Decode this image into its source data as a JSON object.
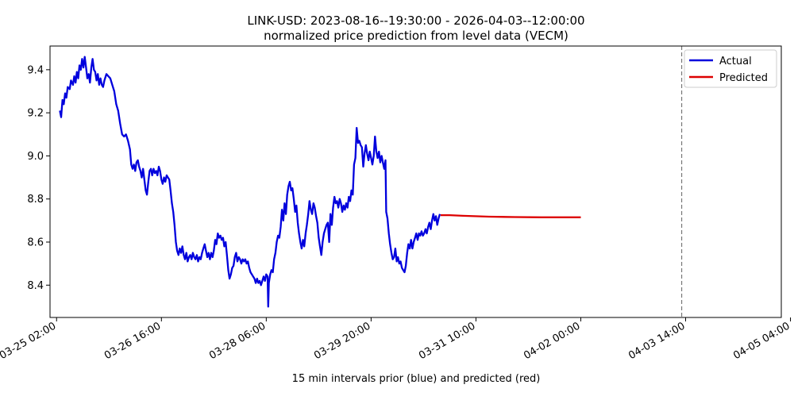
{
  "chart_data": {
    "type": "line",
    "title": "LINK-USD: 2023-08-16--19:30:00 - 2026-04-03--12:00:00",
    "subtitle": "normalized price prediction from level data (VECM)",
    "xlabel": "15 min intervals prior (blue) and predicted (red)",
    "ylabel": "",
    "xlim": [
      -10,
      1106
    ],
    "ylim": [
      8.25,
      9.51
    ],
    "x_tick_values": [
      0,
      160,
      320,
      480,
      640,
      800,
      960,
      1120
    ],
    "x_tick_labels": [
      "03-25 02:00",
      "03-26 16:00",
      "03-28 06:00",
      "03-29 20:00",
      "03-31 10:00",
      "04-02 00:00",
      "04-03 14:00",
      "04-05 04:00"
    ],
    "y_ticks": [
      8.4,
      8.6,
      8.8,
      9.0,
      9.2,
      9.4
    ],
    "y_tick_labels": [
      "8.4",
      "8.6",
      "8.8",
      "9.0",
      "9.2",
      "9.4"
    ],
    "forecast_start": 954,
    "legend_position": "top-right",
    "grid": false,
    "series": [
      {
        "name": "Actual",
        "color": "#0000dd",
        "points": [
          [
            5,
            9.21
          ],
          [
            7,
            9.18
          ],
          [
            9,
            9.26
          ],
          [
            11,
            9.24
          ],
          [
            13,
            9.29
          ],
          [
            15,
            9.27
          ],
          [
            17,
            9.32
          ],
          [
            20,
            9.31
          ],
          [
            22,
            9.35
          ],
          [
            25,
            9.33
          ],
          [
            27,
            9.37
          ],
          [
            29,
            9.34
          ],
          [
            31,
            9.39
          ],
          [
            33,
            9.36
          ],
          [
            35,
            9.42
          ],
          [
            37,
            9.4
          ],
          [
            39,
            9.45
          ],
          [
            41,
            9.41
          ],
          [
            43,
            9.46
          ],
          [
            45,
            9.41
          ],
          [
            47,
            9.36
          ],
          [
            49,
            9.38
          ],
          [
            51,
            9.34
          ],
          [
            53,
            9.41
          ],
          [
            55,
            9.45
          ],
          [
            57,
            9.4
          ],
          [
            59,
            9.39
          ],
          [
            61,
            9.35
          ],
          [
            63,
            9.38
          ],
          [
            65,
            9.33
          ],
          [
            67,
            9.36
          ],
          [
            69,
            9.33
          ],
          [
            71,
            9.32
          ],
          [
            73,
            9.35
          ],
          [
            76,
            9.38
          ],
          [
            79,
            9.37
          ],
          [
            82,
            9.36
          ],
          [
            85,
            9.33
          ],
          [
            88,
            9.3
          ],
          [
            91,
            9.24
          ],
          [
            94,
            9.21
          ],
          [
            97,
            9.15
          ],
          [
            100,
            9.1
          ],
          [
            103,
            9.09
          ],
          [
            106,
            9.1
          ],
          [
            109,
            9.07
          ],
          [
            112,
            9.03
          ],
          [
            114,
            8.96
          ],
          [
            116,
            8.94
          ],
          [
            118,
            8.96
          ],
          [
            120,
            8.93
          ],
          [
            122,
            8.97
          ],
          [
            124,
            8.98
          ],
          [
            126,
            8.95
          ],
          [
            128,
            8.93
          ],
          [
            130,
            8.9
          ],
          [
            132,
            8.94
          ],
          [
            134,
            8.89
          ],
          [
            136,
            8.84
          ],
          [
            138,
            8.82
          ],
          [
            140,
            8.88
          ],
          [
            142,
            8.93
          ],
          [
            144,
            8.94
          ],
          [
            146,
            8.91
          ],
          [
            148,
            8.94
          ],
          [
            150,
            8.92
          ],
          [
            152,
            8.93
          ],
          [
            154,
            8.91
          ],
          [
            156,
            8.95
          ],
          [
            158,
            8.93
          ],
          [
            160,
            8.89
          ],
          [
            162,
            8.87
          ],
          [
            164,
            8.9
          ],
          [
            166,
            8.88
          ],
          [
            168,
            8.91
          ],
          [
            170,
            8.9
          ],
          [
            172,
            8.89
          ],
          [
            174,
            8.84
          ],
          [
            176,
            8.78
          ],
          [
            178,
            8.74
          ],
          [
            180,
            8.68
          ],
          [
            182,
            8.6
          ],
          [
            184,
            8.56
          ],
          [
            186,
            8.54
          ],
          [
            188,
            8.57
          ],
          [
            190,
            8.55
          ],
          [
            192,
            8.58
          ],
          [
            194,
            8.54
          ],
          [
            196,
            8.52
          ],
          [
            198,
            8.55
          ],
          [
            200,
            8.51
          ],
          [
            202,
            8.53
          ],
          [
            204,
            8.54
          ],
          [
            206,
            8.52
          ],
          [
            208,
            8.55
          ],
          [
            210,
            8.53
          ],
          [
            212,
            8.52
          ],
          [
            214,
            8.54
          ],
          [
            216,
            8.51
          ],
          [
            218,
            8.53
          ],
          [
            220,
            8.52
          ],
          [
            222,
            8.55
          ],
          [
            224,
            8.57
          ],
          [
            226,
            8.59
          ],
          [
            228,
            8.56
          ],
          [
            230,
            8.53
          ],
          [
            232,
            8.55
          ],
          [
            234,
            8.52
          ],
          [
            236,
            8.55
          ],
          [
            238,
            8.53
          ],
          [
            240,
            8.56
          ],
          [
            242,
            8.61
          ],
          [
            244,
            8.59
          ],
          [
            246,
            8.64
          ],
          [
            248,
            8.62
          ],
          [
            250,
            8.63
          ],
          [
            252,
            8.61
          ],
          [
            254,
            8.62
          ],
          [
            256,
            8.58
          ],
          [
            258,
            8.6
          ],
          [
            260,
            8.54
          ],
          [
            262,
            8.47
          ],
          [
            264,
            8.43
          ],
          [
            266,
            8.45
          ],
          [
            268,
            8.48
          ],
          [
            270,
            8.49
          ],
          [
            272,
            8.53
          ],
          [
            274,
            8.55
          ],
          [
            276,
            8.51
          ],
          [
            278,
            8.53
          ],
          [
            280,
            8.52
          ],
          [
            282,
            8.5
          ],
          [
            284,
            8.52
          ],
          [
            286,
            8.51
          ],
          [
            288,
            8.52
          ],
          [
            290,
            8.5
          ],
          [
            292,
            8.51
          ],
          [
            294,
            8.48
          ],
          [
            296,
            8.46
          ],
          [
            298,
            8.45
          ],
          [
            300,
            8.44
          ],
          [
            302,
            8.43
          ],
          [
            304,
            8.41
          ],
          [
            306,
            8.43
          ],
          [
            308,
            8.41
          ],
          [
            310,
            8.42
          ],
          [
            312,
            8.4
          ],
          [
            314,
            8.42
          ],
          [
            316,
            8.44
          ],
          [
            318,
            8.42
          ],
          [
            320,
            8.45
          ],
          [
            322,
            8.44
          ],
          [
            323,
            8.3
          ],
          [
            324,
            8.41
          ],
          [
            326,
            8.45
          ],
          [
            328,
            8.47
          ],
          [
            330,
            8.46
          ],
          [
            332,
            8.52
          ],
          [
            334,
            8.55
          ],
          [
            336,
            8.6
          ],
          [
            338,
            8.63
          ],
          [
            340,
            8.62
          ],
          [
            342,
            8.67
          ],
          [
            344,
            8.75
          ],
          [
            346,
            8.7
          ],
          [
            348,
            8.78
          ],
          [
            350,
            8.73
          ],
          [
            352,
            8.82
          ],
          [
            354,
            8.86
          ],
          [
            356,
            8.88
          ],
          [
            358,
            8.84
          ],
          [
            360,
            8.85
          ],
          [
            362,
            8.8
          ],
          [
            364,
            8.74
          ],
          [
            366,
            8.77
          ],
          [
            368,
            8.69
          ],
          [
            370,
            8.64
          ],
          [
            372,
            8.6
          ],
          [
            374,
            8.57
          ],
          [
            376,
            8.61
          ],
          [
            378,
            8.58
          ],
          [
            380,
            8.64
          ],
          [
            382,
            8.68
          ],
          [
            384,
            8.73
          ],
          [
            386,
            8.79
          ],
          [
            388,
            8.75
          ],
          [
            390,
            8.73
          ],
          [
            392,
            8.78
          ],
          [
            394,
            8.76
          ],
          [
            396,
            8.72
          ],
          [
            398,
            8.69
          ],
          [
            400,
            8.62
          ],
          [
            402,
            8.58
          ],
          [
            404,
            8.54
          ],
          [
            406,
            8.6
          ],
          [
            408,
            8.64
          ],
          [
            410,
            8.66
          ],
          [
            412,
            8.68
          ],
          [
            414,
            8.69
          ],
          [
            416,
            8.6
          ],
          [
            418,
            8.73
          ],
          [
            420,
            8.68
          ],
          [
            422,
            8.76
          ],
          [
            424,
            8.81
          ],
          [
            426,
            8.78
          ],
          [
            428,
            8.79
          ],
          [
            430,
            8.76
          ],
          [
            432,
            8.8
          ],
          [
            434,
            8.78
          ],
          [
            436,
            8.74
          ],
          [
            438,
            8.77
          ],
          [
            440,
            8.75
          ],
          [
            442,
            8.78
          ],
          [
            444,
            8.76
          ],
          [
            446,
            8.81
          ],
          [
            448,
            8.79
          ],
          [
            450,
            8.84
          ],
          [
            452,
            8.82
          ],
          [
            454,
            8.96
          ],
          [
            456,
            8.99
          ],
          [
            458,
            9.13
          ],
          [
            460,
            9.06
          ],
          [
            462,
            9.07
          ],
          [
            464,
            9.05
          ],
          [
            466,
            9.04
          ],
          [
            468,
            8.95
          ],
          [
            470,
            9.01
          ],
          [
            472,
            9.05
          ],
          [
            474,
            9.01
          ],
          [
            476,
            8.98
          ],
          [
            478,
            9.02
          ],
          [
            480,
            8.99
          ],
          [
            482,
            8.96
          ],
          [
            484,
            9.0
          ],
          [
            486,
            9.09
          ],
          [
            488,
            9.02
          ],
          [
            490,
            8.99
          ],
          [
            492,
            9.02
          ],
          [
            494,
            8.97
          ],
          [
            496,
            9.0
          ],
          [
            498,
            8.97
          ],
          [
            500,
            8.94
          ],
          [
            502,
            8.98
          ],
          [
            503,
            8.74
          ],
          [
            505,
            8.71
          ],
          [
            507,
            8.64
          ],
          [
            509,
            8.59
          ],
          [
            511,
            8.55
          ],
          [
            513,
            8.52
          ],
          [
            515,
            8.53
          ],
          [
            517,
            8.57
          ],
          [
            519,
            8.51
          ],
          [
            521,
            8.53
          ],
          [
            523,
            8.5
          ],
          [
            525,
            8.51
          ],
          [
            527,
            8.48
          ],
          [
            529,
            8.47
          ],
          [
            531,
            8.46
          ],
          [
            533,
            8.49
          ],
          [
            535,
            8.55
          ],
          [
            537,
            8.59
          ],
          [
            539,
            8.57
          ],
          [
            541,
            8.61
          ],
          [
            543,
            8.57
          ],
          [
            545,
            8.6
          ],
          [
            547,
            8.62
          ],
          [
            549,
            8.64
          ],
          [
            551,
            8.61
          ],
          [
            553,
            8.64
          ],
          [
            555,
            8.63
          ],
          [
            557,
            8.65
          ],
          [
            559,
            8.63
          ],
          [
            561,
            8.64
          ],
          [
            563,
            8.66
          ],
          [
            565,
            8.64
          ],
          [
            567,
            8.67
          ],
          [
            569,
            8.69
          ],
          [
            571,
            8.66
          ],
          [
            573,
            8.7
          ],
          [
            575,
            8.73
          ],
          [
            577,
            8.7
          ],
          [
            579,
            8.72
          ],
          [
            581,
            8.68
          ],
          [
            583,
            8.71
          ],
          [
            585,
            8.73
          ]
        ]
      },
      {
        "name": "Predicted",
        "color": "#dd0000",
        "points": [
          [
            586,
            8.725
          ],
          [
            600,
            8.725
          ],
          [
            620,
            8.722
          ],
          [
            660,
            8.718
          ],
          [
            700,
            8.716
          ],
          [
            740,
            8.715
          ],
          [
            780,
            8.715
          ],
          [
            800,
            8.715
          ]
        ]
      }
    ]
  }
}
